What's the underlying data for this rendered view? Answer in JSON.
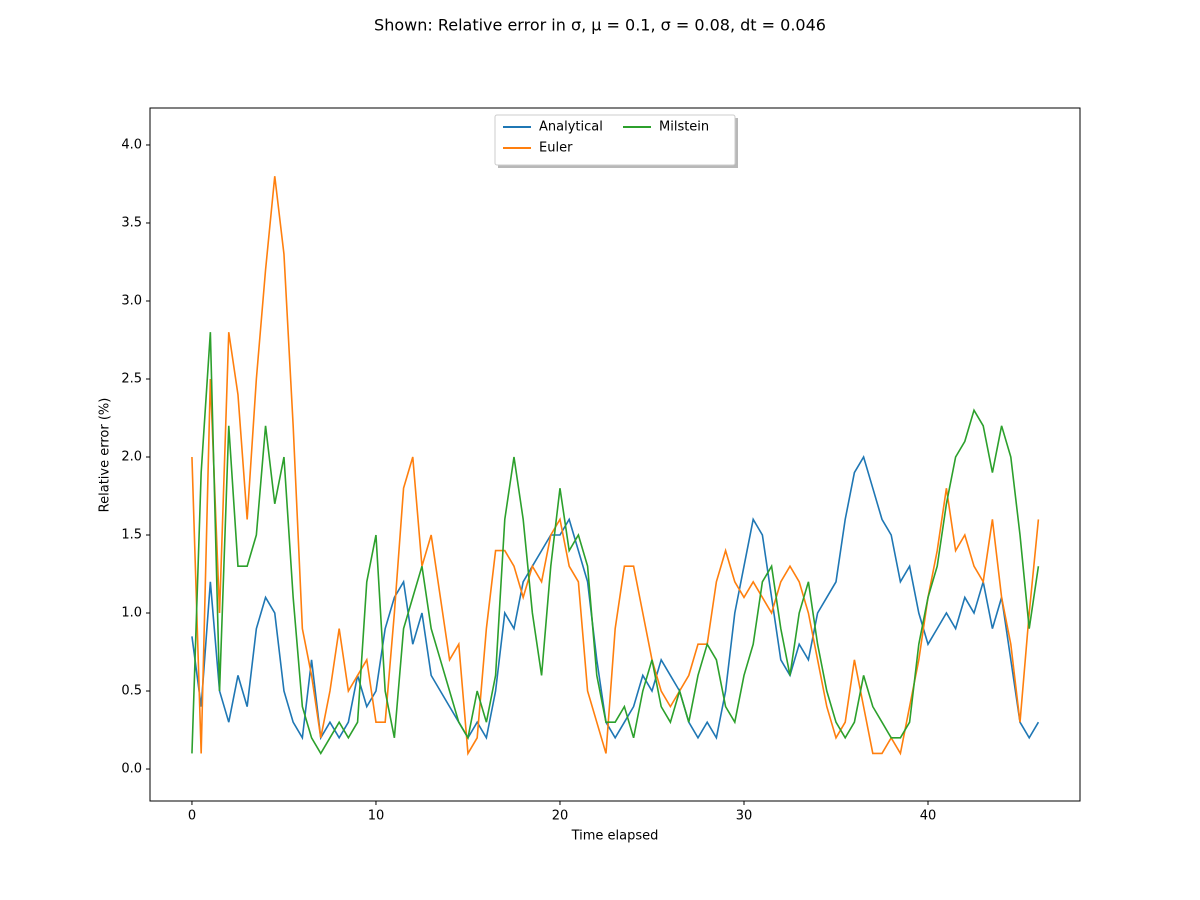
{
  "chart_data": {
    "type": "line",
    "title": "Shown: Relative error in σ, μ = 0.1, σ = 0.08, dt = 0.046",
    "xlabel": "Time elapsed",
    "ylabel": "Relative error (%)",
    "x": [
      0,
      0.5,
      1,
      1.5,
      2,
      2.5,
      3,
      3.5,
      4,
      4.5,
      5,
      5.5,
      6,
      6.5,
      7,
      7.5,
      8,
      8.5,
      9,
      9.5,
      10,
      10.5,
      11,
      11.5,
      12,
      12.5,
      13,
      13.5,
      14,
      14.5,
      15,
      15.5,
      16,
      16.5,
      17,
      17.5,
      18,
      18.5,
      19,
      19.5,
      20,
      20.5,
      21,
      21.5,
      22,
      22.5,
      23,
      23.5,
      24,
      24.5,
      25,
      25.5,
      26,
      26.5,
      27,
      27.5,
      28,
      28.5,
      29,
      29.5,
      30,
      30.5,
      31,
      31.5,
      32,
      32.5,
      33,
      33.5,
      34,
      34.5,
      35,
      35.5,
      36,
      36.5,
      37,
      37.5,
      38,
      38.5,
      39,
      39.5,
      40,
      40.5,
      41,
      41.5,
      42,
      42.5,
      43,
      43.5,
      44,
      44.5,
      45,
      45.5,
      46
    ],
    "series": [
      {
        "name": "Analytical",
        "color": "#1f77b4",
        "values": [
          0.85,
          0.4,
          1.2,
          0.5,
          0.3,
          0.6,
          0.4,
          0.9,
          1.1,
          1.0,
          0.5,
          0.3,
          0.2,
          0.7,
          0.2,
          0.3,
          0.2,
          0.3,
          0.6,
          0.4,
          0.5,
          0.9,
          1.1,
          1.2,
          0.8,
          1.0,
          0.6,
          0.5,
          0.4,
          0.3,
          0.2,
          0.3,
          0.2,
          0.5,
          1.0,
          0.9,
          1.2,
          1.3,
          1.4,
          1.5,
          1.5,
          1.6,
          1.4,
          1.2,
          0.7,
          0.3,
          0.2,
          0.3,
          0.4,
          0.6,
          0.5,
          0.7,
          0.6,
          0.5,
          0.3,
          0.2,
          0.3,
          0.2,
          0.5,
          1.0,
          1.3,
          1.6,
          1.5,
          1.1,
          0.7,
          0.6,
          0.8,
          0.7,
          1.0,
          1.1,
          1.2,
          1.6,
          1.9,
          2.0,
          1.8,
          1.6,
          1.5,
          1.2,
          1.3,
          1.0,
          0.8,
          0.9,
          1.0,
          0.9,
          1.1,
          1.0,
          1.2,
          0.9,
          1.1,
          0.7,
          0.3,
          0.2,
          0.3
        ]
      },
      {
        "name": "Euler",
        "color": "#ff7f0e",
        "values": [
          2.0,
          0.1,
          2.5,
          1.0,
          2.8,
          2.4,
          1.6,
          2.5,
          3.2,
          3.8,
          3.3,
          2.2,
          0.9,
          0.6,
          0.2,
          0.5,
          0.9,
          0.5,
          0.6,
          0.7,
          0.3,
          0.3,
          1.0,
          1.8,
          2.0,
          1.3,
          1.5,
          1.1,
          0.7,
          0.8,
          0.1,
          0.2,
          0.9,
          1.4,
          1.4,
          1.3,
          1.1,
          1.3,
          1.2,
          1.5,
          1.6,
          1.3,
          1.2,
          0.5,
          0.3,
          0.1,
          0.9,
          1.3,
          1.3,
          1.0,
          0.7,
          0.5,
          0.4,
          0.5,
          0.6,
          0.8,
          0.8,
          1.2,
          1.4,
          1.2,
          1.1,
          1.2,
          1.1,
          1.0,
          1.2,
          1.3,
          1.2,
          1.0,
          0.7,
          0.4,
          0.2,
          0.3,
          0.7,
          0.4,
          0.1,
          0.1,
          0.2,
          0.1,
          0.4,
          0.7,
          1.1,
          1.4,
          1.8,
          1.4,
          1.5,
          1.3,
          1.2,
          1.6,
          1.1,
          0.8,
          0.3,
          1.0,
          1.6
        ]
      },
      {
        "name": "Milstein",
        "color": "#2ca02c",
        "values": [
          0.1,
          1.9,
          2.8,
          0.5,
          2.2,
          1.3,
          1.3,
          1.5,
          2.2,
          1.7,
          2.0,
          1.1,
          0.4,
          0.2,
          0.1,
          0.2,
          0.3,
          0.2,
          0.3,
          1.2,
          1.5,
          0.5,
          0.2,
          0.9,
          1.1,
          1.3,
          0.9,
          0.7,
          0.5,
          0.3,
          0.2,
          0.5,
          0.3,
          0.6,
          1.6,
          2.0,
          1.6,
          1.0,
          0.6,
          1.3,
          1.8,
          1.4,
          1.5,
          1.3,
          0.6,
          0.3,
          0.3,
          0.4,
          0.2,
          0.5,
          0.7,
          0.4,
          0.3,
          0.5,
          0.3,
          0.6,
          0.8,
          0.7,
          0.4,
          0.3,
          0.6,
          0.8,
          1.2,
          1.3,
          0.9,
          0.6,
          1.0,
          1.2,
          0.8,
          0.5,
          0.3,
          0.2,
          0.3,
          0.6,
          0.4,
          0.3,
          0.2,
          0.2,
          0.3,
          0.8,
          1.1,
          1.3,
          1.7,
          2.0,
          2.1,
          2.3,
          2.2,
          1.9,
          2.2,
          2.0,
          1.5,
          0.9,
          1.3
        ]
      }
    ],
    "xlim": [
      -2.28,
      48.26
    ],
    "ylim": [
      -0.205,
      4.237
    ],
    "xticks": [
      0,
      10,
      20,
      30,
      40
    ],
    "yticks": [
      {
        "value": 0,
        "label": "0.0"
      },
      0.5,
      {
        "value": 1,
        "label": "1.0"
      },
      1.5,
      {
        "value": 2,
        "label": "2.0"
      },
      2.5,
      {
        "value": 3,
        "label": "3.0"
      },
      3.5,
      {
        "value": 4,
        "label": "4.0"
      }
    ],
    "legend": "upper center",
    "grid": false
  }
}
